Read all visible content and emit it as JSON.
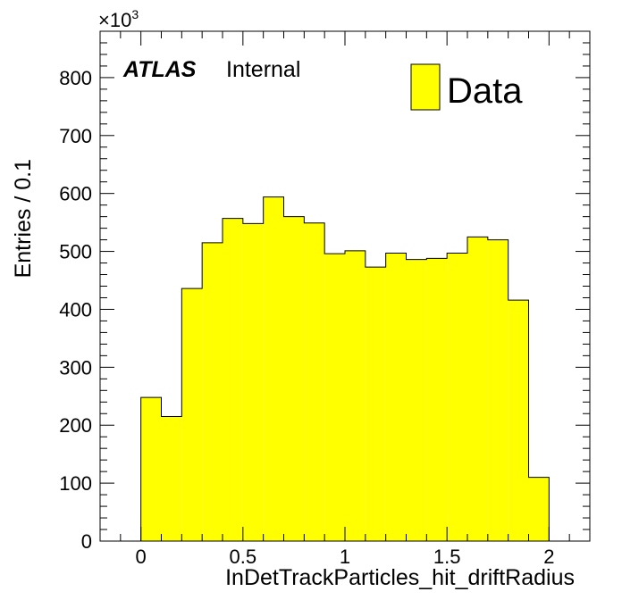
{
  "chart_data": {
    "type": "bar",
    "histogram": true,
    "xlabel": "InDetTrackParticles_hit_driftRadius",
    "ylabel": "Entries / 0.1",
    "y_multiplier_label": "×10",
    "y_multiplier_exponent": "3",
    "xlim": [
      -0.2,
      2.2
    ],
    "ylim": [
      0,
      880
    ],
    "x_ticks": [
      0,
      0.5,
      1,
      1.5,
      2
    ],
    "x_tick_labels": [
      "0",
      "0.5",
      "1",
      "1.5",
      "2"
    ],
    "y_ticks": [
      0,
      100,
      200,
      300,
      400,
      500,
      600,
      700,
      800
    ],
    "y_tick_labels": [
      "0",
      "100",
      "200",
      "300",
      "400",
      "500",
      "600",
      "700",
      "800"
    ],
    "bin_edges": [
      0.0,
      0.1,
      0.2,
      0.3,
      0.4,
      0.5,
      0.6,
      0.7,
      0.8,
      0.9,
      1.0,
      1.1,
      1.2,
      1.3,
      1.4,
      1.5,
      1.6,
      1.7,
      1.8,
      1.9,
      2.0
    ],
    "series": [
      {
        "name": "Data",
        "color": "#ffff00",
        "values": [
          248,
          215,
          436,
          515,
          557,
          548,
          594,
          560,
          549,
          496,
          501,
          473,
          497,
          486,
          488,
          497,
          525,
          520,
          416,
          110
        ]
      }
    ],
    "legend_placement": "top-right",
    "grid": false
  },
  "annotations": {
    "atlas": "ATLAS",
    "internal": "Internal"
  }
}
